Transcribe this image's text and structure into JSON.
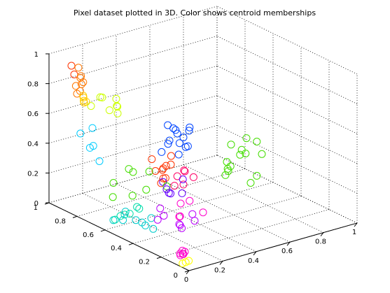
{
  "chart_data": {
    "type": "scatter",
    "dimensions": 3,
    "title": "Pixel dataset plotted in 3D. Color shows centroid memberships",
    "xlabel": "",
    "ylabel": "",
    "zlabel": "",
    "x_ticks": [
      "0",
      "0.2",
      "0.4",
      "0.6",
      "0.8",
      "1"
    ],
    "y_ticks": [
      "0",
      "0.2",
      "0.4",
      "0.6",
      "0.8",
      "1"
    ],
    "z_ticks": [
      "0",
      "0.2",
      "0.4",
      "0.6",
      "0.8",
      "1"
    ],
    "xlim": [
      0,
      1
    ],
    "ylim": [
      0,
      1
    ],
    "zlim": [
      0,
      1
    ],
    "grid": true,
    "legend": "none",
    "marker": "open-circle",
    "cluster_colors": [
      "#ff3300",
      "#ff7700",
      "#ffcc00",
      "#ccff00",
      "#44dd00",
      "#00ddaa",
      "#00cccc",
      "#00ccff",
      "#0044ff",
      "#6600ff",
      "#bb00ff",
      "#ff00cc",
      "#ff0066",
      "#ffff00"
    ],
    "series": [
      {
        "color": "#ff3300",
        "points": [
          [
            0.05,
            0.9,
            0.95
          ],
          [
            0.05,
            0.88,
            0.9
          ],
          [
            0.3,
            0.6,
            0.3
          ],
          [
            0.35,
            0.55,
            0.35
          ],
          [
            0.3,
            0.55,
            0.33
          ],
          [
            0.25,
            0.5,
            0.28
          ],
          [
            0.33,
            0.58,
            0.25
          ],
          [
            0.38,
            0.62,
            0.3
          ],
          [
            0.28,
            0.52,
            0.36
          ],
          [
            0.36,
            0.56,
            0.4
          ],
          [
            0.32,
            0.65,
            0.35
          ],
          [
            0.26,
            0.48,
            0.32
          ]
        ]
      },
      {
        "color": "#ff7700",
        "points": [
          [
            0.05,
            0.85,
            0.96
          ],
          [
            0.06,
            0.84,
            0.85
          ],
          [
            0.06,
            0.85,
            0.8
          ],
          [
            0.07,
            0.86,
            0.88
          ],
          [
            0.04,
            0.82,
            0.92
          ],
          [
            0.06,
            0.88,
            0.82
          ],
          [
            0.05,
            0.86,
            0.78
          ],
          [
            0.07,
            0.84,
            0.86
          ]
        ]
      },
      {
        "color": "#ffcc00",
        "points": [
          [
            0.08,
            0.85,
            0.75
          ],
          [
            0.09,
            0.86,
            0.72
          ],
          [
            0.07,
            0.84,
            0.77
          ],
          [
            0.1,
            0.87,
            0.7
          ],
          [
            0.08,
            0.83,
            0.73
          ]
        ]
      },
      {
        "color": "#ccff00",
        "points": [
          [
            0.15,
            0.8,
            0.75
          ],
          [
            0.2,
            0.75,
            0.65
          ],
          [
            0.25,
            0.82,
            0.7
          ],
          [
            0.18,
            0.85,
            0.72
          ],
          [
            0.22,
            0.78,
            0.68
          ],
          [
            0.1,
            0.82,
            0.7
          ],
          [
            0.16,
            0.76,
            0.68
          ],
          [
            0.24,
            0.8,
            0.66
          ]
        ]
      },
      {
        "color": "#44dd00",
        "points": [
          [
            0.05,
            0.6,
            0.3
          ],
          [
            0.1,
            0.55,
            0.4
          ],
          [
            0.15,
            0.58,
            0.35
          ],
          [
            0.3,
            0.1,
            0.5
          ],
          [
            0.35,
            0.15,
            0.55
          ],
          [
            0.4,
            0.2,
            0.45
          ],
          [
            0.5,
            0.3,
            0.55
          ],
          [
            0.55,
            0.25,
            0.6
          ],
          [
            0.6,
            0.2,
            0.5
          ],
          [
            0.45,
            0.1,
            0.4
          ],
          [
            0.08,
            0.5,
            0.25
          ],
          [
            0.12,
            0.45,
            0.3
          ],
          [
            0.18,
            0.5,
            0.38
          ],
          [
            0.2,
            0.4,
            0.32
          ],
          [
            0.38,
            0.18,
            0.48
          ],
          [
            0.48,
            0.28,
            0.42
          ],
          [
            0.52,
            0.22,
            0.52
          ],
          [
            0.58,
            0.32,
            0.48
          ],
          [
            0.62,
            0.26,
            0.55
          ],
          [
            0.42,
            0.14,
            0.58
          ],
          [
            0.47,
            0.08,
            0.45
          ],
          [
            0.03,
            0.58,
            0.22
          ]
        ]
      },
      {
        "color": "#00ddaa",
        "points": [
          [
            0.05,
            0.55,
            0.1
          ],
          [
            0.08,
            0.52,
            0.12
          ],
          [
            0.1,
            0.58,
            0.08
          ],
          [
            0.12,
            0.5,
            0.15
          ],
          [
            0.06,
            0.6,
            0.05
          ],
          [
            0.09,
            0.48,
            0.18
          ]
        ]
      },
      {
        "color": "#00cccc",
        "points": [
          [
            0.05,
            0.6,
            0.05
          ],
          [
            0.1,
            0.5,
            0.08
          ],
          [
            0.15,
            0.45,
            0.1
          ],
          [
            0.08,
            0.55,
            0.12
          ],
          [
            0.12,
            0.4,
            0.06
          ],
          [
            0.04,
            0.52,
            0.09
          ],
          [
            0.14,
            0.48,
            0.04
          ],
          [
            0.07,
            0.42,
            0.11
          ]
        ]
      },
      {
        "color": "#00ccff",
        "points": [
          [
            0.05,
            0.7,
            0.4
          ],
          [
            0.02,
            0.8,
            0.55
          ],
          [
            0.05,
            0.75,
            0.6
          ],
          [
            0.03,
            0.72,
            0.5
          ],
          [
            0.06,
            0.78,
            0.45
          ]
        ]
      },
      {
        "color": "#0044ff",
        "points": [
          [
            0.5,
            0.75,
            0.35
          ],
          [
            0.55,
            0.7,
            0.4
          ],
          [
            0.48,
            0.65,
            0.33
          ],
          [
            0.52,
            0.72,
            0.45
          ],
          [
            0.58,
            0.78,
            0.38
          ],
          [
            0.45,
            0.68,
            0.42
          ],
          [
            0.53,
            0.66,
            0.36
          ],
          [
            0.56,
            0.74,
            0.34
          ],
          [
            0.49,
            0.7,
            0.48
          ],
          [
            0.6,
            0.72,
            0.42
          ],
          [
            0.47,
            0.76,
            0.3
          ],
          [
            0.54,
            0.8,
            0.44
          ],
          [
            0.51,
            0.62,
            0.39
          ],
          [
            0.57,
            0.68,
            0.47
          ]
        ]
      },
      {
        "color": "#6600ff",
        "points": [
          [
            0.2,
            0.4,
            0.3
          ],
          [
            0.25,
            0.35,
            0.28
          ],
          [
            0.22,
            0.45,
            0.32
          ],
          [
            0.28,
            0.38,
            0.35
          ],
          [
            0.24,
            0.42,
            0.25
          ],
          [
            0.18,
            0.36,
            0.3
          ]
        ]
      },
      {
        "color": "#bb00ff",
        "points": [
          [
            0.1,
            0.3,
            0.2
          ],
          [
            0.15,
            0.25,
            0.15
          ],
          [
            0.2,
            0.2,
            0.18
          ],
          [
            0.12,
            0.35,
            0.22
          ],
          [
            0.18,
            0.28,
            0.12
          ],
          [
            0.08,
            0.32,
            0.17
          ],
          [
            0.22,
            0.24,
            0.2
          ],
          [
            0.14,
            0.22,
            0.14
          ]
        ]
      },
      {
        "color": "#ff00cc",
        "points": [
          [
            0.05,
            0.1,
            0.05
          ],
          [
            0.06,
            0.12,
            0.06
          ],
          [
            0.04,
            0.11,
            0.04
          ],
          [
            0.05,
            0.09,
            0.07
          ],
          [
            0.15,
            0.25,
            0.2
          ],
          [
            0.2,
            0.3,
            0.25
          ],
          [
            0.25,
            0.2,
            0.22
          ],
          [
            0.07,
            0.13,
            0.03
          ],
          [
            0.03,
            0.1,
            0.06
          ],
          [
            0.18,
            0.28,
            0.18
          ],
          [
            0.22,
            0.26,
            0.28
          ]
        ]
      },
      {
        "color": "#ff0066",
        "points": [
          [
            0.3,
            0.4,
            0.3
          ],
          [
            0.35,
            0.45,
            0.35
          ],
          [
            0.32,
            0.42,
            0.38
          ],
          [
            0.28,
            0.44,
            0.28
          ],
          [
            0.36,
            0.4,
            0.33
          ],
          [
            0.33,
            0.48,
            0.31
          ]
        ]
      },
      {
        "color": "#ffff00",
        "points": [
          [
            0.03,
            0.06,
            0.02
          ],
          [
            0.04,
            0.05,
            0.03
          ],
          [
            0.02,
            0.07,
            0.01
          ]
        ]
      }
    ]
  }
}
